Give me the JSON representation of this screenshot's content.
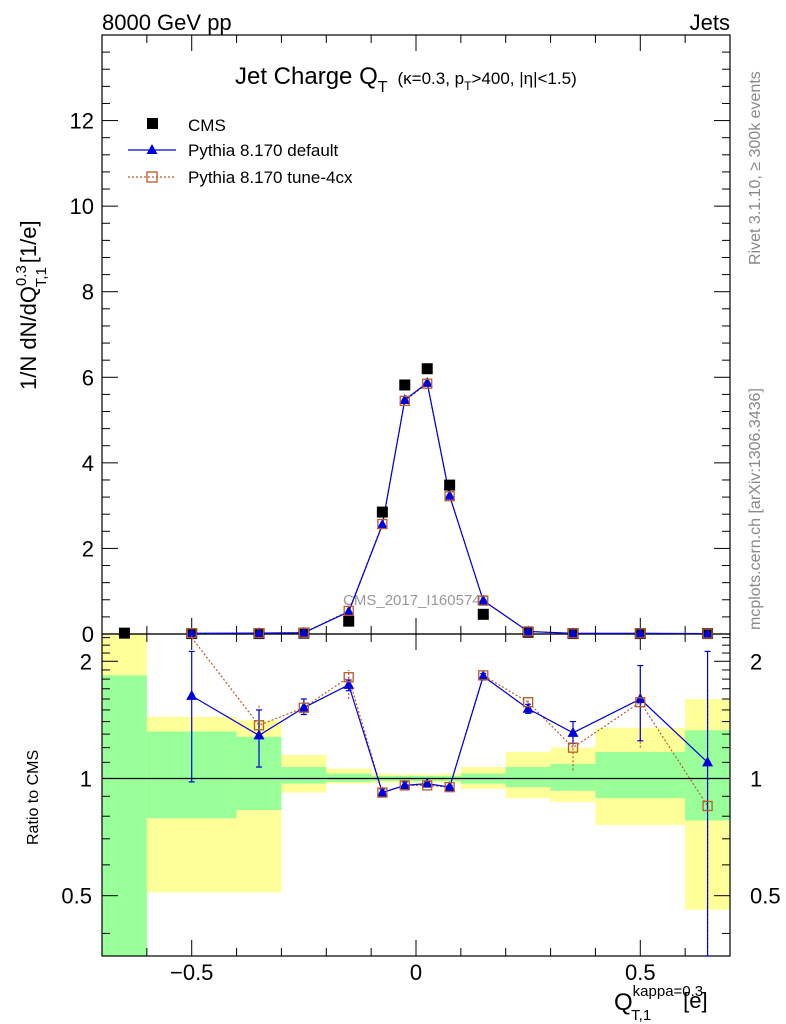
{
  "header": {
    "left": "8000 GeV pp",
    "right": "Jets"
  },
  "side_labels": {
    "rivet": "Rivet 3.1.10, ≥ 300k events",
    "mcplots": "mcplots.cern.ch [arXiv:1306.3436]"
  },
  "watermark": "CMS_2017_I1605749",
  "colors": {
    "cms": "#000000",
    "default": "#0000dd",
    "tune": "#b85c28",
    "band_inner": "#99ff99",
    "band_outer": "#ffff99"
  },
  "chart_data": {
    "type": "line",
    "title": {
      "main": "Jet Charge Q",
      "sub": "T",
      "params": "(κ=0.3, p",
      "psub": "T",
      "params2": ">400, |η|<1.5)"
    },
    "xlabel": {
      "main": "Q",
      "sup": "kappa=0.3",
      "sub": "T,1",
      "unit": "[e]"
    },
    "ylabel": {
      "pre": "1/N dN/dQ",
      "sup": "0.3",
      "sub": "T,1",
      "unit": "[1/e]"
    },
    "ratio_ylabel": "Ratio to CMS",
    "xlim": [
      -0.7,
      0.7
    ],
    "ylim": [
      0,
      14
    ],
    "ratio_ylim": [
      0.35,
      2.35
    ],
    "x_ticks": [
      -0.5,
      0,
      0.5
    ],
    "x_tick_labels": [
      "−0.5",
      "0",
      "0.5"
    ],
    "y_ticks": [
      0,
      2,
      4,
      6,
      8,
      10,
      12
    ],
    "ratio_y_ticks": [
      0.5,
      1,
      2
    ],
    "ratio_y_tick_labels": [
      "0.5",
      "1",
      "2"
    ],
    "legend": [
      "CMS",
      "Pythia 8.170 default",
      "Pythia 8.170 tune-4cx"
    ],
    "legend_position": "top-left",
    "series": [
      {
        "name": "CMS",
        "x": [
          -0.65,
          -0.5,
          -0.35,
          -0.25,
          -0.15,
          -0.075,
          -0.025,
          0.025,
          0.075,
          0.15,
          0.25,
          0.35,
          0.5,
          0.65
        ],
        "y": [
          0.02,
          0.01,
          0.01,
          0.02,
          0.3,
          2.85,
          5.82,
          6.2,
          3.48,
          0.46,
          0.04,
          0.01,
          0.01,
          0.01
        ]
      },
      {
        "name": "Pythia 8.170 default",
        "x": [
          -0.5,
          -0.35,
          -0.25,
          -0.15,
          -0.075,
          -0.025,
          0.025,
          0.075,
          0.15,
          0.25,
          0.35,
          0.5,
          0.65
        ],
        "y": [
          0.015,
          0.02,
          0.03,
          0.52,
          2.55,
          5.47,
          5.87,
          3.23,
          0.78,
          0.06,
          0.015,
          0.015,
          0.01
        ]
      },
      {
        "name": "Pythia 8.170 tune-4cx",
        "x": [
          -0.5,
          -0.35,
          -0.25,
          -0.15,
          -0.075,
          -0.025,
          0.025,
          0.075,
          0.15,
          0.25,
          0.35,
          0.5,
          0.65
        ],
        "y": [
          0.02,
          0.02,
          0.03,
          0.54,
          2.57,
          5.45,
          5.85,
          3.22,
          0.78,
          0.06,
          0.015,
          0.015,
          0.01
        ]
      }
    ],
    "ratio_bands": [
      {
        "x0": -0.7,
        "x1": -0.6,
        "inner": [
          0.3,
          1.84
        ],
        "outer": [
          0.3,
          2.35
        ]
      },
      {
        "x0": -0.6,
        "x1": -0.4,
        "inner": [
          0.79,
          1.32
        ],
        "outer": [
          0.51,
          1.44
        ]
      },
      {
        "x0": -0.4,
        "x1": -0.3,
        "inner": [
          0.83,
          1.28
        ],
        "outer": [
          0.51,
          1.41
        ]
      },
      {
        "x0": -0.3,
        "x1": -0.2,
        "inner": [
          0.97,
          1.07
        ],
        "outer": [
          0.92,
          1.15
        ]
      },
      {
        "x0": -0.2,
        "x1": -0.1,
        "inner": [
          0.98,
          1.03
        ],
        "outer": [
          0.97,
          1.06
        ]
      },
      {
        "x0": -0.1,
        "x1": -0.05,
        "inner": [
          0.985,
          1.015
        ],
        "outer": [
          0.975,
          1.03
        ]
      },
      {
        "x0": -0.05,
        "x1": 0.05,
        "inner": [
          0.985,
          1.015
        ],
        "outer": [
          0.975,
          1.025
        ]
      },
      {
        "x0": 0.05,
        "x1": 0.1,
        "inner": [
          0.985,
          1.015
        ],
        "outer": [
          0.975,
          1.03
        ]
      },
      {
        "x0": 0.1,
        "x1": 0.2,
        "inner": [
          0.97,
          1.03
        ],
        "outer": [
          0.94,
          1.07
        ]
      },
      {
        "x0": 0.2,
        "x1": 0.3,
        "inner": [
          0.95,
          1.07
        ],
        "outer": [
          0.89,
          1.17
        ]
      },
      {
        "x0": 0.3,
        "x1": 0.4,
        "inner": [
          0.93,
          1.09
        ],
        "outer": [
          0.87,
          1.2
        ]
      },
      {
        "x0": 0.4,
        "x1": 0.6,
        "inner": [
          0.89,
          1.17
        ],
        "outer": [
          0.76,
          1.35
        ]
      },
      {
        "x0": 0.6,
        "x1": 0.7,
        "inner": [
          0.78,
          1.33
        ],
        "outer": [
          0.46,
          1.6
        ]
      }
    ],
    "ratio_series": [
      {
        "name": "Pythia 8.170 default",
        "x": [
          -0.5,
          -0.35,
          -0.25,
          -0.15,
          -0.075,
          -0.025,
          0.025,
          0.075,
          0.15,
          0.25,
          0.35,
          0.5,
          0.65
        ],
        "y": [
          1.63,
          1.29,
          1.52,
          1.74,
          0.92,
          0.96,
          0.97,
          0.95,
          1.83,
          1.51,
          1.31,
          1.6,
          1.1
        ],
        "err_lo": [
          0.98,
          1.07,
          1.46,
          1.68,
          0.9,
          0.95,
          0.96,
          0.94,
          1.79,
          1.47,
          1.23,
          1.25,
          0.3
        ],
        "err_hi": [
          2.12,
          1.5,
          1.6,
          1.79,
          0.94,
          0.98,
          0.98,
          0.96,
          1.86,
          1.55,
          1.4,
          1.95,
          2.12
        ]
      },
      {
        "name": "Pythia 8.170 tune-4cx",
        "x": [
          -0.5,
          -0.35,
          -0.25,
          -0.15,
          -0.075,
          -0.025,
          0.025,
          0.075,
          0.15,
          0.25,
          0.35,
          0.5,
          0.65
        ],
        "y": [
          2.3,
          1.37,
          1.52,
          1.82,
          0.92,
          0.96,
          0.96,
          0.95,
          1.84,
          1.57,
          1.2,
          1.57,
          0.85
        ],
        "err_lo": [
          2.3,
          1.2,
          1.46,
          1.6,
          0.9,
          0.95,
          0.95,
          0.94,
          1.8,
          1.53,
          1.05,
          1.2,
          0.3
        ],
        "err_hi": [
          2.35,
          1.55,
          1.58,
          1.9,
          0.94,
          0.97,
          0.97,
          0.96,
          1.87,
          1.61,
          1.35,
          1.93,
          1.7
        ]
      }
    ]
  }
}
